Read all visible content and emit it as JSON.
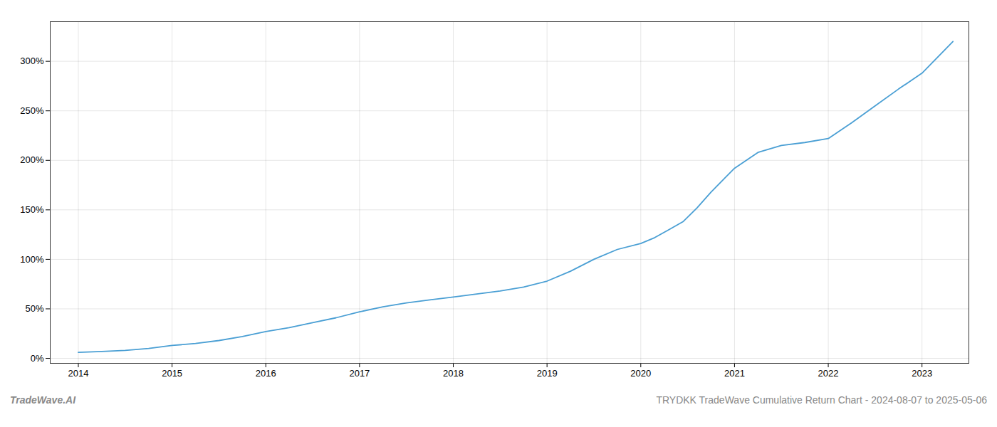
{
  "chart_data": {
    "type": "line",
    "title": "TRYDKK TradeWave Cumulative Return Chart - 2024-08-07 to 2025-05-06",
    "annotations": [
      "TradeWave.AI"
    ],
    "x": [
      2014.0,
      2014.25,
      2014.5,
      2014.75,
      2015.0,
      2015.25,
      2015.5,
      2015.75,
      2016.0,
      2016.25,
      2016.5,
      2016.75,
      2017.0,
      2017.25,
      2017.5,
      2017.75,
      2018.0,
      2018.25,
      2018.5,
      2018.75,
      2019.0,
      2019.25,
      2019.5,
      2019.75,
      2020.0,
      2020.15,
      2020.3,
      2020.45,
      2020.6,
      2020.75,
      2021.0,
      2021.25,
      2021.5,
      2021.75,
      2022.0,
      2022.25,
      2022.5,
      2022.75,
      2023.0,
      2023.33
    ],
    "values": [
      6,
      7,
      8,
      10,
      13,
      15,
      18,
      22,
      27,
      31,
      36,
      41,
      47,
      52,
      56,
      59,
      62,
      65,
      68,
      72,
      78,
      88,
      100,
      110,
      116,
      122,
      130,
      138,
      152,
      168,
      192,
      208,
      215,
      218,
      222,
      238,
      255,
      272,
      288,
      320
    ],
    "color": "#4a9fd4",
    "xlim": [
      2013.7,
      2023.5
    ],
    "ylim": [
      -5,
      340
    ],
    "xticks": [
      2014,
      2015,
      2016,
      2017,
      2018,
      2019,
      2020,
      2021,
      2022,
      2023
    ],
    "yticks": [
      {
        "value": 0,
        "label": "0%"
      },
      {
        "value": 50,
        "label": "50%"
      },
      {
        "value": 100,
        "label": "100%"
      },
      {
        "value": 150,
        "label": "150%"
      },
      {
        "value": 200,
        "label": "200%"
      },
      {
        "value": 250,
        "label": "250%"
      },
      {
        "value": 300,
        "label": "300%"
      }
    ],
    "grid": true
  }
}
